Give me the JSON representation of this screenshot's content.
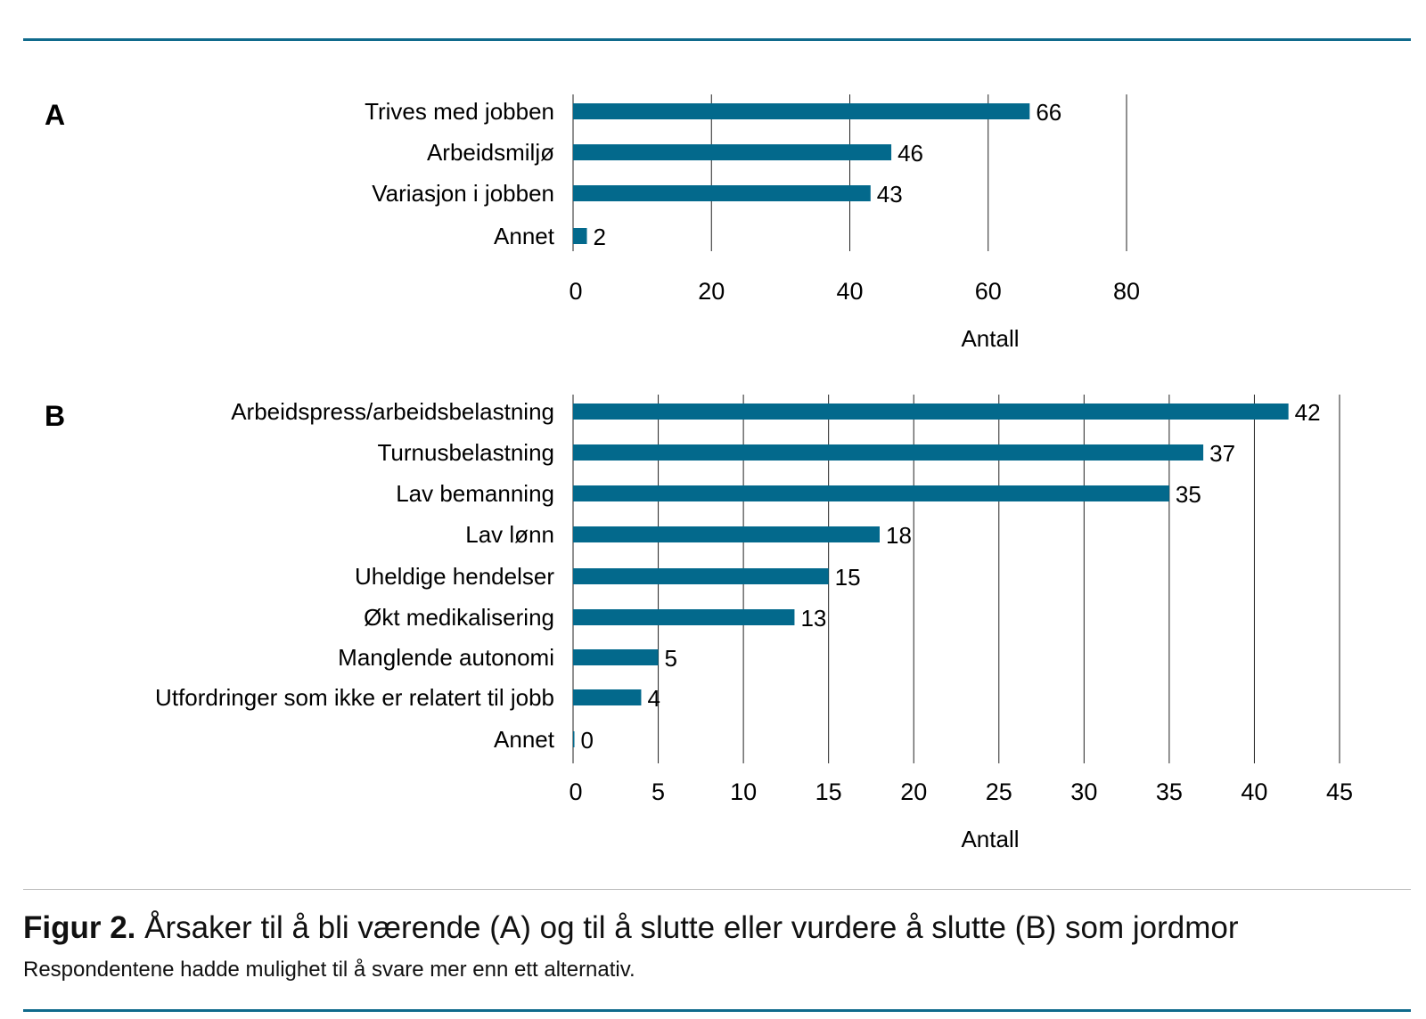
{
  "color": "#03698c",
  "chart_data": [
    {
      "type": "bar",
      "orientation": "horizontal",
      "panel": "A",
      "categories": [
        "Trives med jobben",
        "Arbeidsmiljø",
        "Variasjon i jobben",
        "Annet"
      ],
      "values": [
        66,
        46,
        43,
        2
      ],
      "xlabel": "Antall",
      "xlim": [
        0,
        80
      ],
      "ticks": [
        0,
        20,
        40,
        60,
        80
      ],
      "grid": true
    },
    {
      "type": "bar",
      "orientation": "horizontal",
      "panel": "B",
      "categories": [
        "Arbeidspress/arbeidsbelastning",
        "Turnusbelastning",
        "Lav bemanning",
        "Lav lønn",
        "Uheldige hendelser",
        "Økt medikalisering",
        "Manglende autonomi",
        "Utfordringer som ikke er relatert til jobb",
        "Annet"
      ],
      "values": [
        42,
        37,
        35,
        18,
        15,
        13,
        5,
        4,
        0
      ],
      "xlabel": "Antall",
      "xlim": [
        0,
        45
      ],
      "ticks": [
        0,
        5,
        10,
        15,
        20,
        25,
        30,
        35,
        40,
        45
      ],
      "grid": true
    }
  ],
  "caption": {
    "label": "Figur 2.",
    "title": " Årsaker til å bli værende (A) og til å slutte eller vurdere å slutte (B) som jordmor",
    "subtitle": "Respondentene hadde mulighet til å svare mer enn ett alternativ."
  }
}
